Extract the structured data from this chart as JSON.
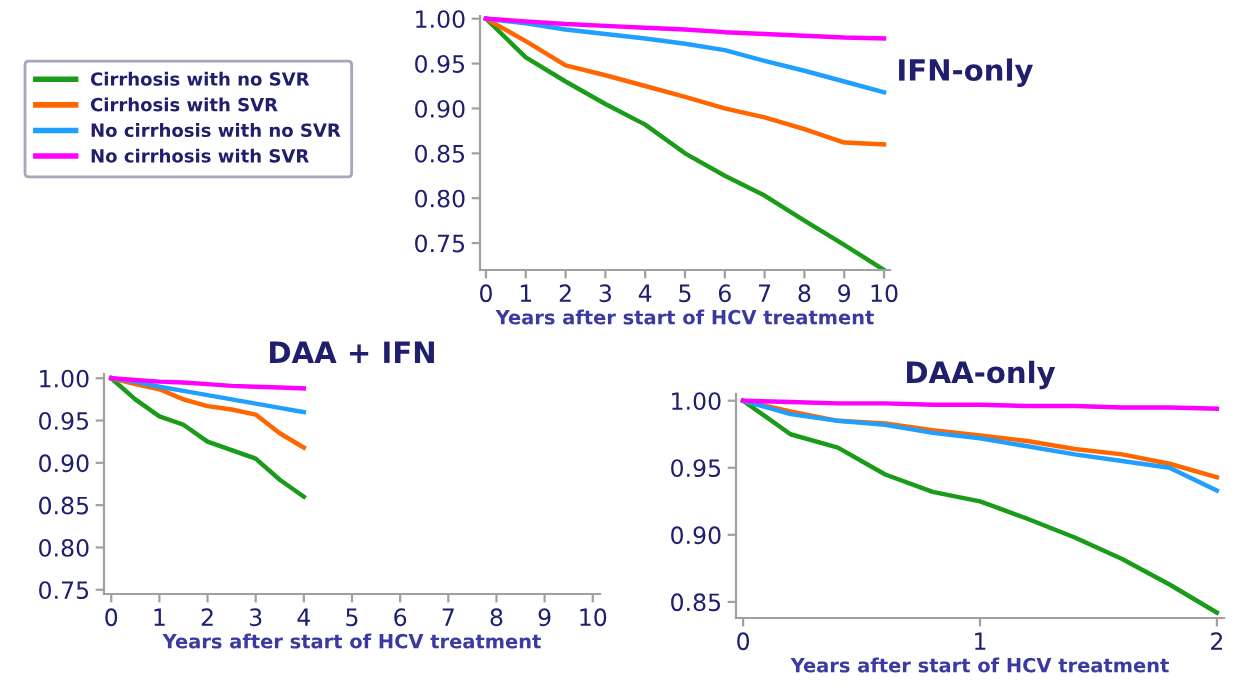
{
  "chart_data": [
    {
      "type": "line",
      "title": "IFN-only",
      "xlabel": "Years after start of HCV treatment",
      "xlim": [
        -0.15,
        10.15
      ],
      "xticks": [
        0,
        1,
        2,
        3,
        4,
        5,
        6,
        7,
        8,
        9,
        10
      ],
      "ylim": [
        0.72,
        1.003
      ],
      "yticks": [
        {
          "value": 0.75,
          "label": "0.75"
        },
        {
          "value": 0.8,
          "label": "0.80"
        },
        {
          "value": 0.85,
          "label": "0.85"
        },
        {
          "value": 0.9,
          "label": "0.90"
        },
        {
          "value": 0.95,
          "label": "0.95"
        },
        {
          "value": 1.0,
          "label": "1.00"
        }
      ],
      "legend": "left",
      "grid": false,
      "x": [
        0,
        1,
        2,
        3,
        4,
        5,
        6,
        7,
        8,
        9,
        10
      ],
      "series": [
        {
          "name": "Cirrhosis with no SVR",
          "color": "#1a9c1a",
          "values": [
            1.0,
            0.957,
            0.93,
            0.905,
            0.882,
            0.85,
            0.825,
            0.803,
            0.775,
            0.748,
            0.72
          ]
        },
        {
          "name": "Cirrhosis with SVR",
          "color": "#ff6600",
          "values": [
            1.0,
            0.975,
            0.948,
            0.937,
            0.925,
            0.913,
            0.9,
            0.89,
            0.877,
            0.862,
            0.86
          ]
        },
        {
          "name": "No cirrhosis with no SVR",
          "color": "#1fa0ff",
          "values": [
            1.0,
            0.995,
            0.988,
            0.983,
            0.978,
            0.972,
            0.965,
            0.953,
            0.942,
            0.93,
            0.918
          ]
        },
        {
          "name": "No cirrhosis with SVR",
          "color": "#ff00ff",
          "values": [
            1.0,
            0.997,
            0.994,
            0.992,
            0.99,
            0.988,
            0.985,
            0.983,
            0.981,
            0.979,
            0.978
          ]
        }
      ]
    },
    {
      "type": "line",
      "title": "DAA + IFN",
      "xlabel": "Years after start of HCV treatment",
      "xlim": [
        -0.15,
        10.15
      ],
      "xticks": [
        0,
        1,
        2,
        3,
        4,
        5,
        6,
        7,
        8,
        9,
        10
      ],
      "ylim": [
        0.745,
        1.005
      ],
      "yticks": [
        {
          "value": 0.75,
          "label": "0.75"
        },
        {
          "value": 0.8,
          "label": "0.80"
        },
        {
          "value": 0.85,
          "label": "0.85"
        },
        {
          "value": 0.9,
          "label": "0.90"
        },
        {
          "value": 0.95,
          "label": "0.95"
        },
        {
          "value": 1.0,
          "label": "1.00"
        }
      ],
      "grid": false,
      "x": [
        0,
        0.5,
        1,
        1.5,
        2,
        2.5,
        3,
        3.5,
        4
      ],
      "series": [
        {
          "color": "#1a9c1a",
          "values": [
            1.0,
            0.975,
            0.955,
            0.945,
            0.925,
            0.915,
            0.905,
            0.88,
            0.86
          ]
        },
        {
          "color": "#ff6600",
          "values": [
            1.0,
            0.993,
            0.987,
            0.975,
            0.967,
            0.963,
            0.957,
            0.935,
            0.918
          ]
        },
        {
          "color": "#1fa0ff",
          "values": [
            1.0,
            0.996,
            0.99,
            0.985,
            0.98,
            0.975,
            0.97,
            0.965,
            0.96
          ]
        },
        {
          "color": "#ff00ff",
          "values": [
            1.0,
            0.998,
            0.996,
            0.995,
            0.993,
            0.991,
            0.99,
            0.989,
            0.988
          ]
        }
      ]
    },
    {
      "type": "line",
      "title": "DAA-only",
      "xlabel": "Years after start of HCV treatment",
      "xlim": [
        -0.03,
        2.03
      ],
      "xticks": [
        0,
        1,
        2
      ],
      "ylim": [
        0.838,
        1.005
      ],
      "yticks": [
        {
          "value": 0.85,
          "label": "0.85"
        },
        {
          "value": 0.9,
          "label": "0.90"
        },
        {
          "value": 0.95,
          "label": "0.95"
        },
        {
          "value": 1.0,
          "label": "1.00"
        }
      ],
      "grid": false,
      "x": [
        0,
        0.2,
        0.4,
        0.6,
        0.8,
        1.0,
        1.2,
        1.4,
        1.6,
        1.8,
        2.0
      ],
      "series": [
        {
          "color": "#1a9c1a",
          "values": [
            1.0,
            0.975,
            0.965,
            0.945,
            0.932,
            0.925,
            0.912,
            0.898,
            0.882,
            0.863,
            0.842
          ]
        },
        {
          "color": "#ff6600",
          "values": [
            1.0,
            0.992,
            0.985,
            0.983,
            0.978,
            0.974,
            0.97,
            0.964,
            0.96,
            0.953,
            0.943
          ]
        },
        {
          "color": "#1fa0ff",
          "values": [
            1.0,
            0.99,
            0.985,
            0.982,
            0.976,
            0.972,
            0.966,
            0.96,
            0.955,
            0.95,
            0.933
          ]
        },
        {
          "color": "#ff00ff",
          "values": [
            1.0,
            0.999,
            0.998,
            0.998,
            0.997,
            0.997,
            0.996,
            0.996,
            0.995,
            0.995,
            0.994
          ]
        }
      ]
    }
  ]
}
